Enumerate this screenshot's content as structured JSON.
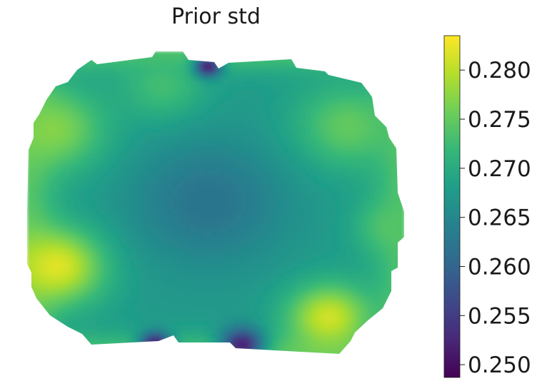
{
  "chart_data": {
    "type": "heatmap",
    "title": "Prior std",
    "xlabel": "",
    "ylabel": "",
    "colormap": "viridis",
    "colormap_stops": [
      "#440154",
      "#482878",
      "#3e4989",
      "#31688e",
      "#26828e",
      "#1f9e89",
      "#35b779",
      "#6ece58",
      "#b5de2b",
      "#fde725"
    ],
    "vmin": 0.2487,
    "vmax": 0.2835,
    "colorbar_ticks": [
      "0.250",
      "0.255",
      "0.260",
      "0.265",
      "0.270",
      "0.275",
      "0.280"
    ],
    "colorbar_tick_values": [
      0.25,
      0.255,
      0.26,
      0.265,
      0.27,
      0.275,
      0.28
    ],
    "field_description": "coronal brain-slice shaped region; std lowest near center (~0.263) and at midline notches (~0.250), highest at lower-left and lower-right lobes (~0.281)",
    "hotspots": [
      {
        "u": 0.08,
        "v": 0.71,
        "value": 0.282,
        "spread": 0.09
      },
      {
        "u": 0.8,
        "v": 0.88,
        "value": 0.281,
        "spread": 0.08
      },
      {
        "u": 0.07,
        "v": 0.26,
        "value": 0.277,
        "spread": 0.1
      },
      {
        "u": 0.85,
        "v": 0.25,
        "value": 0.275,
        "spread": 0.1
      },
      {
        "u": 0.97,
        "v": 0.58,
        "value": 0.274,
        "spread": 0.07
      },
      {
        "u": 0.36,
        "v": 0.12,
        "value": 0.273,
        "spread": 0.08
      },
      {
        "u": 0.48,
        "v": 0.5,
        "value": 0.262,
        "spread": 0.14
      },
      {
        "u": 0.48,
        "v": 0.05,
        "value": 0.252,
        "spread": 0.025
      },
      {
        "u": 0.34,
        "v": 0.97,
        "value": 0.251,
        "spread": 0.03
      },
      {
        "u": 0.57,
        "v": 0.97,
        "value": 0.252,
        "spread": 0.04
      }
    ],
    "base_value": 0.2675
  }
}
